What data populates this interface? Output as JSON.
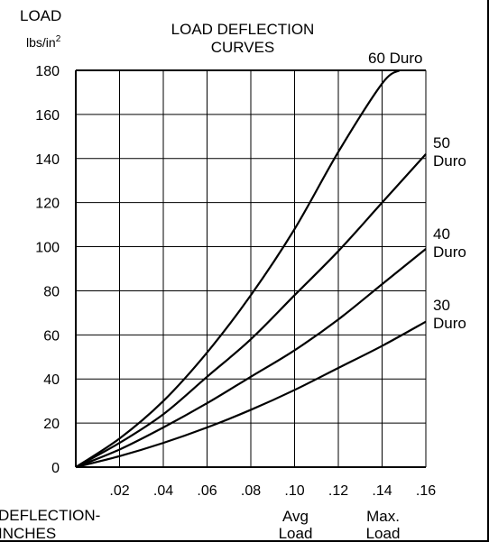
{
  "chart_data": {
    "type": "line",
    "title_lines": [
      "LOAD DEFLECTION",
      "CURVES"
    ],
    "ylabel": "LOAD",
    "yunit_base": "lbs/in",
    "yunit_exp": "2",
    "xlabel_lines": [
      "DEFLECTION-",
      "INCHES"
    ],
    "xlim": [
      0,
      0.16
    ],
    "ylim": [
      0,
      180
    ],
    "x_ticks": [
      0.02,
      0.04,
      0.06,
      0.08,
      0.1,
      0.12,
      0.14,
      0.16
    ],
    "x_tick_labels": [
      ".02",
      ".04",
      ".06",
      ".08",
      ".10",
      ".12",
      ".14",
      ".16"
    ],
    "y_ticks": [
      0,
      20,
      40,
      60,
      80,
      100,
      120,
      140,
      160,
      180
    ],
    "y_tick_labels": [
      "0",
      "20",
      "40",
      "60",
      "80",
      "100",
      "120",
      "140",
      "160",
      "180"
    ],
    "grid": true,
    "markers": [
      {
        "x": 0.1,
        "label_lines": [
          "Avg",
          "Load"
        ]
      },
      {
        "x": 0.14,
        "label_lines": [
          "Max.",
          "Load"
        ]
      }
    ],
    "series": [
      {
        "name": "60 Duro",
        "label_lines": [
          "60 Duro"
        ],
        "x": [
          0,
          0.02,
          0.04,
          0.06,
          0.08,
          0.1,
          0.12,
          0.14,
          0.148
        ],
        "y": [
          0,
          13,
          30,
          52,
          78,
          108,
          143,
          174,
          180
        ]
      },
      {
        "name": "50 Duro",
        "label_lines": [
          "50",
          "Duro"
        ],
        "x": [
          0,
          0.02,
          0.04,
          0.06,
          0.08,
          0.1,
          0.12,
          0.14,
          0.16
        ],
        "y": [
          0,
          11,
          24,
          41,
          58,
          78,
          98,
          120,
          142
        ]
      },
      {
        "name": "40 Duro",
        "label_lines": [
          "40",
          "Duro"
        ],
        "x": [
          0,
          0.02,
          0.04,
          0.06,
          0.08,
          0.1,
          0.12,
          0.14,
          0.16
        ],
        "y": [
          0,
          8,
          18,
          29,
          41,
          53,
          67,
          83,
          99
        ]
      },
      {
        "name": "30 Duro",
        "label_lines": [
          "30",
          "Duro"
        ],
        "x": [
          0,
          0.02,
          0.04,
          0.06,
          0.08,
          0.1,
          0.12,
          0.14,
          0.16
        ],
        "y": [
          0,
          5,
          11,
          18,
          26,
          35,
          45,
          55,
          66
        ]
      }
    ]
  }
}
